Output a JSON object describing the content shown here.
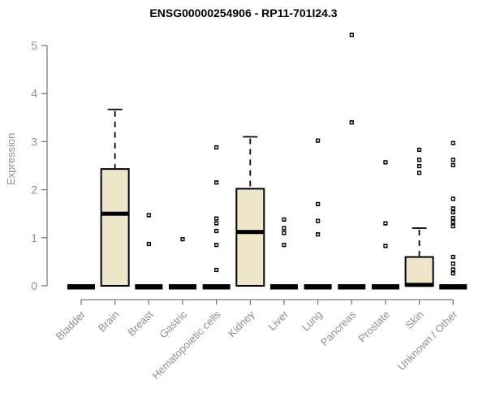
{
  "chart_data": {
    "type": "boxplot",
    "title": "ENSG00000254906 - RP11-701I24.3",
    "ylabel": "Expression",
    "xlabel": "",
    "ylim": [
      0,
      5
    ],
    "yticks": [
      0,
      1,
      2,
      3,
      4,
      5
    ],
    "grid": false,
    "legend": "none",
    "colors": {
      "box_fill": "#EDE6C9",
      "box_stroke": "#000000",
      "median": "#000000",
      "outlier": "#000000",
      "axis_line": "#7f7f7f",
      "tick_text": "#909090",
      "title_text": "#000000"
    },
    "categories": [
      "Bladder",
      "Brain",
      "Breast",
      "Gastric",
      "Hematopoietic cells",
      "Kidney",
      "Liver",
      "Lung",
      "Pancreas",
      "Prostate",
      "Skin",
      "Unknown / Other"
    ],
    "series": [
      {
        "category": "Bladder",
        "q1": 0,
        "median": 0,
        "q3": 0,
        "whisker_low": 0,
        "whisker_high": 0,
        "outliers": []
      },
      {
        "category": "Brain",
        "q1": 0,
        "median": 1.5,
        "q3": 2.43,
        "whisker_low": 0,
        "whisker_high": 3.67,
        "outliers": []
      },
      {
        "category": "Breast",
        "q1": 0,
        "median": 0,
        "q3": 0,
        "whisker_low": 0,
        "whisker_high": 0,
        "outliers": [
          1.47,
          0.87
        ]
      },
      {
        "category": "Gastric",
        "q1": 0,
        "median": 0,
        "q3": 0,
        "whisker_low": 0,
        "whisker_high": 0,
        "outliers": [
          0.97
        ]
      },
      {
        "category": "Hematopoietic cells",
        "q1": 0,
        "median": 0,
        "q3": 0,
        "whisker_low": 0,
        "whisker_high": 0,
        "outliers": [
          2.88,
          2.15,
          1.4,
          1.3,
          1.14,
          0.85,
          0.33
        ]
      },
      {
        "category": "Kidney",
        "q1": 0,
        "median": 1.12,
        "q3": 2.02,
        "whisker_low": 0,
        "whisker_high": 3.1,
        "outliers": []
      },
      {
        "category": "Liver",
        "q1": 0,
        "median": 0,
        "q3": 0,
        "whisker_low": 0,
        "whisker_high": 0,
        "outliers": [
          1.38,
          1.2,
          1.1,
          0.85
        ]
      },
      {
        "category": "Lung",
        "q1": 0,
        "median": 0,
        "q3": 0,
        "whisker_low": 0,
        "whisker_high": 0,
        "outliers": [
          3.02,
          1.7,
          1.35,
          1.07
        ]
      },
      {
        "category": "Pancreas",
        "q1": 0,
        "median": 0,
        "q3": 0,
        "whisker_low": 0,
        "whisker_high": 0,
        "outliers": [
          5.22,
          3.4
        ]
      },
      {
        "category": "Prostate",
        "q1": 0,
        "median": 0,
        "q3": 0,
        "whisker_low": 0,
        "whisker_high": 0,
        "outliers": [
          2.57,
          1.3,
          0.83
        ]
      },
      {
        "category": "Skin",
        "q1": 0,
        "median": 0.02,
        "q3": 0.6,
        "whisker_low": 0,
        "whisker_high": 1.2,
        "outliers": [
          2.83,
          2.62,
          2.49,
          2.35
        ]
      },
      {
        "category": "Unknown / Other",
        "q1": 0,
        "median": 0,
        "q3": 0,
        "whisker_low": 0,
        "whisker_high": 0,
        "outliers": [
          2.97,
          2.62,
          2.51,
          1.81,
          1.61,
          1.53,
          1.41,
          1.33,
          1.24,
          0.6,
          0.46,
          0.34,
          0.26
        ]
      }
    ]
  }
}
